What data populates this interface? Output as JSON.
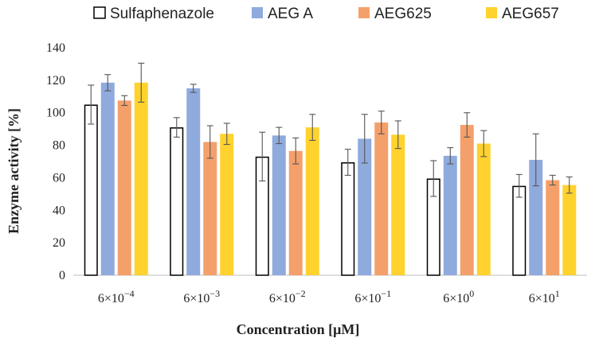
{
  "chart_data": {
    "type": "bar",
    "title": "",
    "xlabel": "Concentration [μM]",
    "ylabel": "Enzyme activity [%]",
    "ylim": [
      0,
      140
    ],
    "yticks": [
      0,
      20,
      40,
      60,
      80,
      100,
      120,
      140
    ],
    "categories": [
      {
        "base": "6×10",
        "exp": "−4"
      },
      {
        "base": "6×10",
        "exp": "−3"
      },
      {
        "base": "6×10",
        "exp": "−2"
      },
      {
        "base": "6×10",
        "exp": "−1"
      },
      {
        "base": "6×10",
        "exp": "0"
      },
      {
        "base": "6×10",
        "exp": "1"
      }
    ],
    "legend_position": "top",
    "series": [
      {
        "name": "Sulfaphenazole",
        "color": "#ffffff",
        "stroke": "#000000",
        "values": [
          105,
          91,
          73,
          69.5,
          59.5,
          55
        ],
        "errors": [
          12,
          6,
          15,
          8,
          11,
          7
        ]
      },
      {
        "name": "AEG A",
        "color": "#8faadc",
        "stroke": "none",
        "values": [
          118.5,
          115,
          86,
          84,
          73.5,
          71
        ],
        "errors": [
          5,
          2.5,
          5,
          15,
          5,
          16
        ]
      },
      {
        "name": "AEG625",
        "color": "#f4a06b",
        "stroke": "none",
        "values": [
          107.5,
          82,
          76.5,
          94,
          92.5,
          58.5
        ],
        "errors": [
          3,
          10,
          8,
          7,
          7.5,
          3
        ]
      },
      {
        "name": "AEG657",
        "color": "#ffd22e",
        "stroke": "none",
        "values": [
          118.5,
          87,
          91,
          86.5,
          81,
          55.5
        ],
        "errors": [
          12,
          6.5,
          8,
          8.5,
          8,
          5
        ]
      }
    ]
  }
}
